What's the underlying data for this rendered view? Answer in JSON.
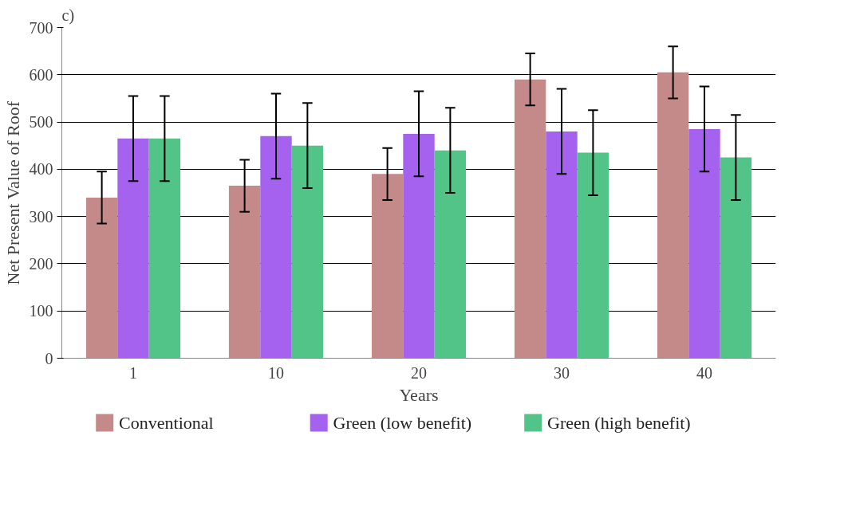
{
  "chart_data": {
    "type": "bar",
    "xlabel": "Years",
    "ylabel": "Net Present Value of Roof",
    "annotations": [
      "c)"
    ],
    "categories": [
      "1",
      "10",
      "20",
      "30",
      "40"
    ],
    "series": [
      {
        "name": "Conventional",
        "color": "#c48a8a",
        "values": [
          340,
          365,
          390,
          590,
          605
        ],
        "errors": [
          55,
          55,
          55,
          55,
          55
        ]
      },
      {
        "name": "Green (low benefit)",
        "color": "#a462ee",
        "values": [
          465,
          470,
          475,
          480,
          485
        ],
        "errors": [
          90,
          90,
          90,
          90,
          90
        ]
      },
      {
        "name": "Green (high benefit)",
        "color": "#52c487",
        "values": [
          465,
          450,
          440,
          435,
          425
        ],
        "errors": [
          90,
          90,
          90,
          90,
          90
        ]
      }
    ],
    "ylim": [
      0,
      700
    ],
    "yticks": [
      0,
      100,
      200,
      300,
      400,
      500,
      600,
      700
    ],
    "grid": "y",
    "legend": "bottom"
  }
}
